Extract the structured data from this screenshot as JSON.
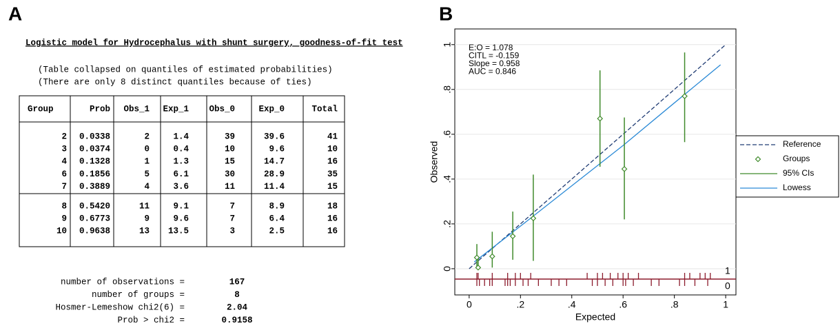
{
  "panel_a": {
    "label": "A",
    "title": "Logistic model for Hydrocephalus_with_shunt_surgery, goodness-of-fit test",
    "notes": [
      "(Table collapsed on quantiles of estimated probabilities)",
      "(There are only 8 distinct quantiles because of ties)"
    ],
    "table": {
      "header": [
        "Group",
        "Prob",
        "Obs_1",
        "Exp_1",
        "Obs_0",
        "Exp_0",
        "Total"
      ],
      "row_groups": [
        [
          [
            "2",
            "0.0338",
            "2",
            "1.4",
            "39",
            "39.6",
            "41"
          ],
          [
            "3",
            "0.0374",
            "0",
            "0.4",
            "10",
            "9.6",
            "10"
          ],
          [
            "4",
            "0.1328",
            "1",
            "1.3",
            "15",
            "14.7",
            "16"
          ],
          [
            "6",
            "0.1856",
            "5",
            "6.1",
            "30",
            "28.9",
            "35"
          ],
          [
            "7",
            "0.3889",
            "4",
            "3.6",
            "11",
            "11.4",
            "15"
          ]
        ],
        [
          [
            "8",
            "0.5420",
            "11",
            "9.1",
            "7",
            "8.9",
            "18"
          ],
          [
            "9",
            "0.6773",
            "9",
            "9.6",
            "7",
            "6.4",
            "16"
          ],
          [
            "10",
            "0.9638",
            "13",
            "13.5",
            "3",
            "2.5",
            "16"
          ]
        ]
      ]
    },
    "summary": [
      [
        "number of observations =",
        "167"
      ],
      [
        "number of groups =",
        "8"
      ],
      [
        "Hosmer-Lemeshow chi2(6) =",
        "2.04"
      ],
      [
        "Prob > chi2 =",
        "0.9158"
      ]
    ]
  },
  "chart_data": {
    "type": "calibration",
    "panel_label": "B",
    "x_label": "Expected",
    "y_label": "Observed",
    "annotations": [
      "E:O = 1.078",
      "CITL = -0.159",
      "Slope = 0.958",
      "AUC = 0.846"
    ],
    "xlim": [
      -0.056,
      1.04
    ],
    "ylim": [
      -0.117,
      1.07
    ],
    "xticks": [
      0,
      {
        "value": 0.2,
        "label": ".2"
      },
      {
        "value": 0.4,
        "label": ".4"
      },
      {
        "value": 0.6,
        "label": ".6"
      },
      {
        "value": 0.8,
        "label": ".8"
      },
      1
    ],
    "yticks": [
      0,
      {
        "value": 0.2,
        "label": ".2"
      },
      {
        "value": 0.4,
        "label": ".4"
      },
      {
        "value": 0.6,
        "label": ".6"
      },
      {
        "value": 0.8,
        "label": ".8"
      },
      1
    ],
    "grid": true,
    "legend": "right",
    "series": [
      {
        "name": "Reference",
        "kind": "dashed-line",
        "color": "#1f3b73",
        "x": [
          0,
          1
        ],
        "values": [
          0,
          1
        ]
      },
      {
        "name": "Groups",
        "kind": "points",
        "color": "#3f8a2a",
        "x": [
          0.03,
          0.035,
          0.09,
          0.17,
          0.25,
          0.51,
          0.605,
          0.84
        ],
        "values": [
          0.05,
          0.005,
          0.055,
          0.145,
          0.225,
          0.67,
          0.445,
          0.77
        ]
      },
      {
        "name": "95% CIs",
        "kind": "intervals",
        "color": "#3f8a2a",
        "x": [
          0.03,
          0.035,
          0.09,
          0.17,
          0.25,
          0.51,
          0.605,
          0.84
        ],
        "low": [
          0.01,
          0,
          0.005,
          0.04,
          0.035,
          0.455,
          0.22,
          0.565
        ],
        "high": [
          0.11,
          0.05,
          0.165,
          0.255,
          0.42,
          0.885,
          0.675,
          0.965
        ]
      },
      {
        "name": "Lowess",
        "kind": "line",
        "color": "#2b8ad6",
        "x": [
          0.02,
          0.2,
          0.4,
          0.6,
          0.8,
          0.98
        ],
        "values": [
          0.03,
          0.19,
          0.37,
          0.55,
          0.74,
          0.91
        ]
      }
    ],
    "rug": {
      "color": "#8b1a2b",
      "series": [
        {
          "name": "1",
          "x": [
            0.03,
            0.035,
            0.09,
            0.15,
            0.18,
            0.2,
            0.24,
            0.46,
            0.5,
            0.52,
            0.55,
            0.58,
            0.6,
            0.62,
            0.66,
            0.84,
            0.86,
            0.9,
            0.92,
            0.94
          ]
        },
        {
          "name": "0",
          "x": [
            0.03,
            0.04,
            0.06,
            0.08,
            0.09,
            0.14,
            0.15,
            0.16,
            0.18,
            0.21,
            0.23,
            0.27,
            0.32,
            0.35,
            0.38,
            0.48,
            0.5,
            0.53,
            0.56,
            0.6,
            0.61,
            0.64,
            0.71,
            0.74,
            0.82,
            0.84,
            0.88,
            0.93
          ]
        }
      ]
    }
  }
}
